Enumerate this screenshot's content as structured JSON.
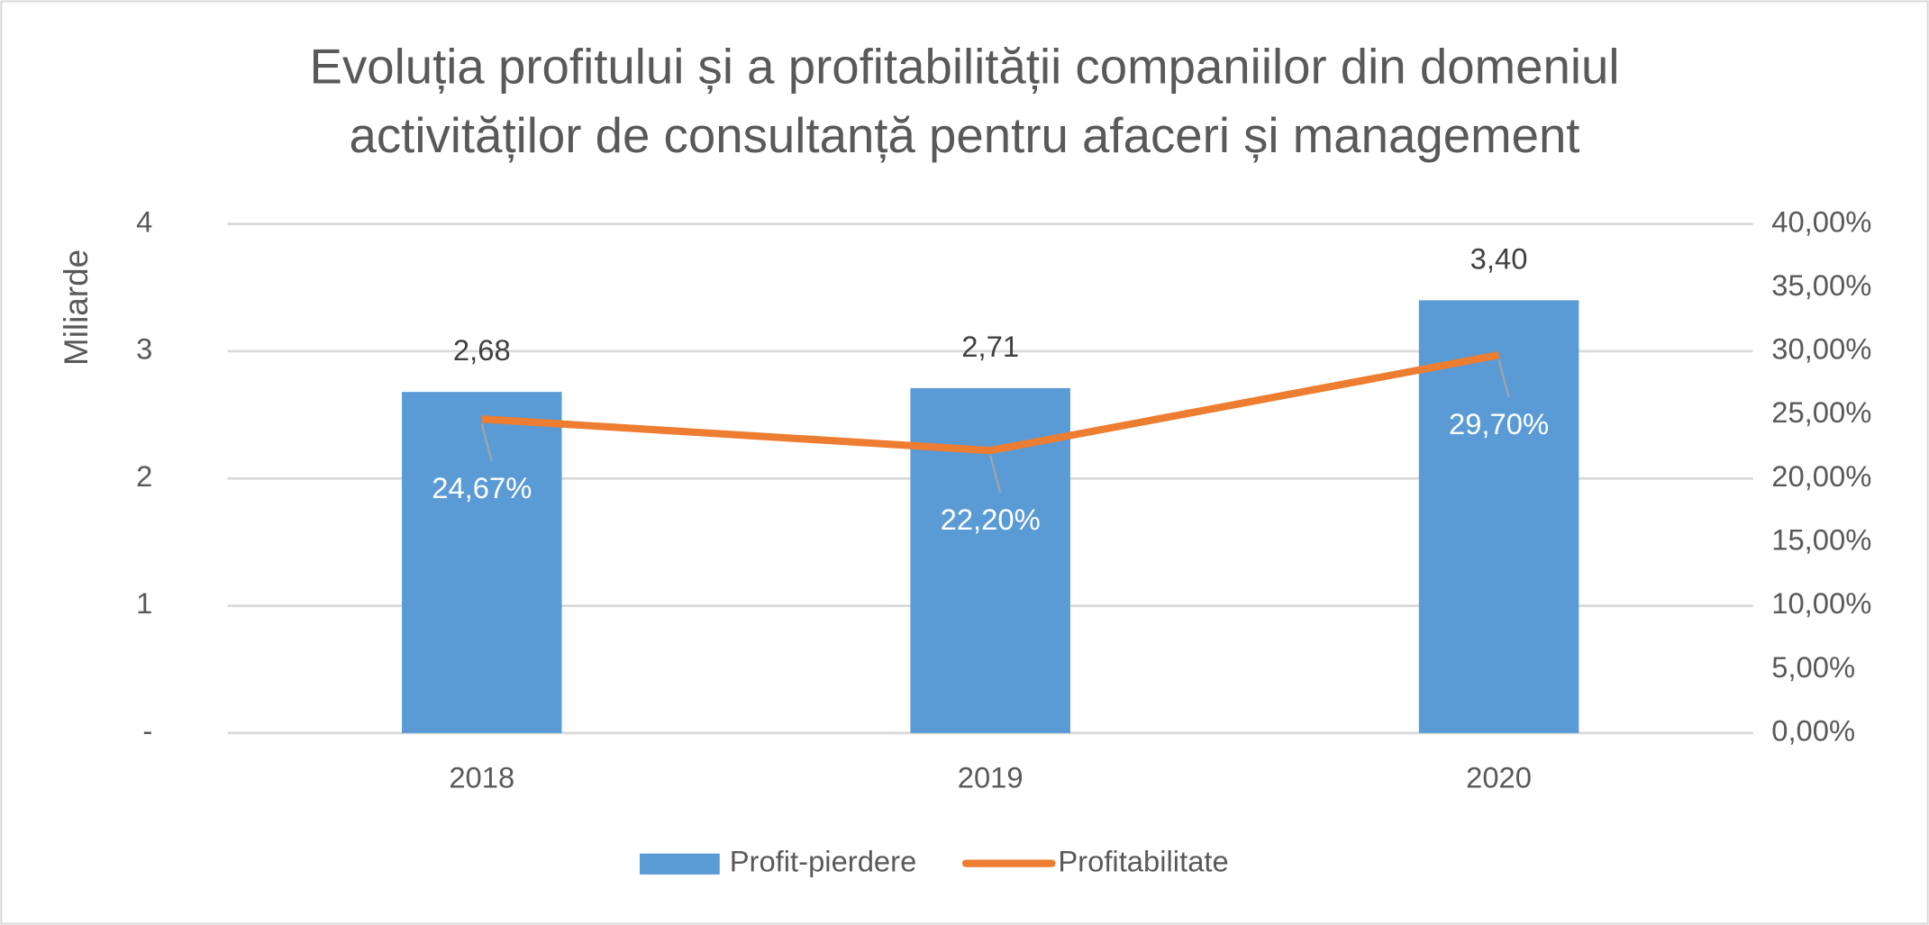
{
  "chart_data": {
    "type": "bar-line",
    "title": [
      "Evoluția profitului și a profitabilității companiilor din domeniul",
      "activităților de consultanță pentru afaceri și management"
    ],
    "ylabel": "Miliarde",
    "categories": [
      "2018",
      "2019",
      "2020"
    ],
    "series": [
      {
        "name": "Profit-pierdere",
        "type": "bar",
        "color": "#5b9bd5",
        "values": [
          2.68,
          2.71,
          3.4
        ],
        "value_labels": [
          "2,68",
          "2,71",
          "3,40"
        ]
      },
      {
        "name": "Profitabilitate",
        "type": "line",
        "axis": "y2",
        "color": "#ed7d31",
        "values": [
          24.67,
          22.2,
          29.7
        ],
        "value_labels": [
          "24,67%",
          "22,20%",
          "29,70%"
        ]
      }
    ],
    "ylim": [
      0,
      4
    ],
    "yticks": [
      {
        "value": 0,
        "label": "-"
      },
      1,
      2,
      3,
      4
    ],
    "y2lim": [
      0,
      40
    ],
    "y2ticks": [
      {
        "value": 0,
        "label": "0,00%"
      },
      {
        "value": 5,
        "label": "5,00%"
      },
      {
        "value": 10,
        "label": "10,00%"
      },
      {
        "value": 15,
        "label": "15,00%"
      },
      {
        "value": 20,
        "label": "20,00%"
      },
      {
        "value": 25,
        "label": "25,00%"
      },
      {
        "value": 30,
        "label": "30,00%"
      },
      {
        "value": 35,
        "label": "35,00%"
      },
      {
        "value": 40,
        "label": "40,00%"
      }
    ],
    "grid": true,
    "legend": "bottom"
  }
}
